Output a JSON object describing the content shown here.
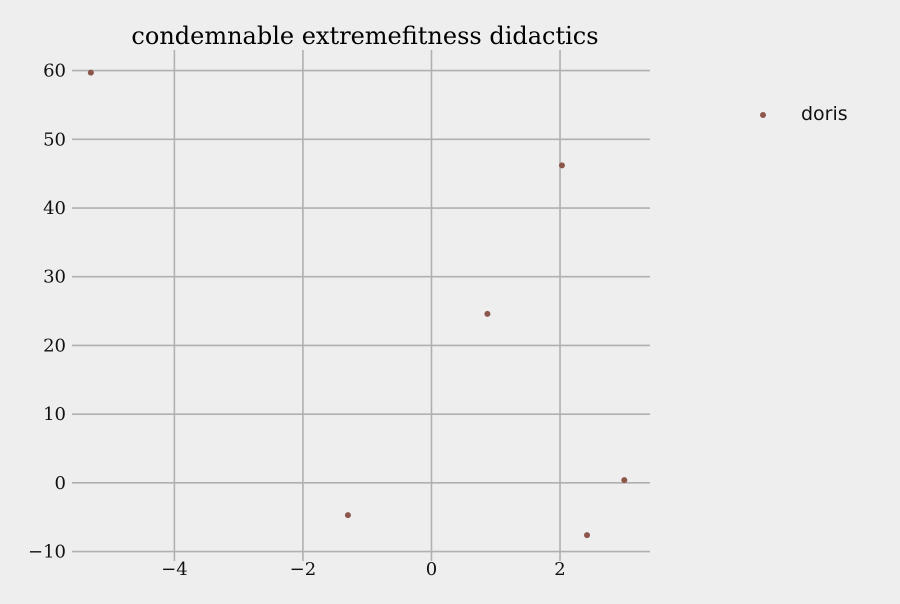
{
  "chart_data": {
    "type": "scatter",
    "title": "condemnable extremefitness didactics",
    "xlabel": "",
    "ylabel": "",
    "xlim": [
      -5.5,
      3.4
    ],
    "ylim": [
      -10.5,
      63
    ],
    "xticks": [
      -4,
      -2,
      0,
      2
    ],
    "xtick_labels": [
      "−4",
      "−2",
      "0",
      "2"
    ],
    "yticks": [
      -10,
      0,
      10,
      20,
      30,
      40,
      50,
      60
    ],
    "ytick_labels": [
      "−10",
      "0",
      "10",
      "20",
      "30",
      "40",
      "50",
      "60"
    ],
    "grid": true,
    "legend_position": "upper right, outside plot",
    "series": [
      {
        "name": "doris",
        "color": "#8c564b",
        "points": [
          {
            "x": -5.3,
            "y": 59.7
          },
          {
            "x": -1.3,
            "y": -4.7
          },
          {
            "x": 0.87,
            "y": 24.6
          },
          {
            "x": 2.03,
            "y": 46.2
          },
          {
            "x": 2.42,
            "y": -7.6
          },
          {
            "x": 3.0,
            "y": 0.4
          }
        ]
      }
    ]
  }
}
